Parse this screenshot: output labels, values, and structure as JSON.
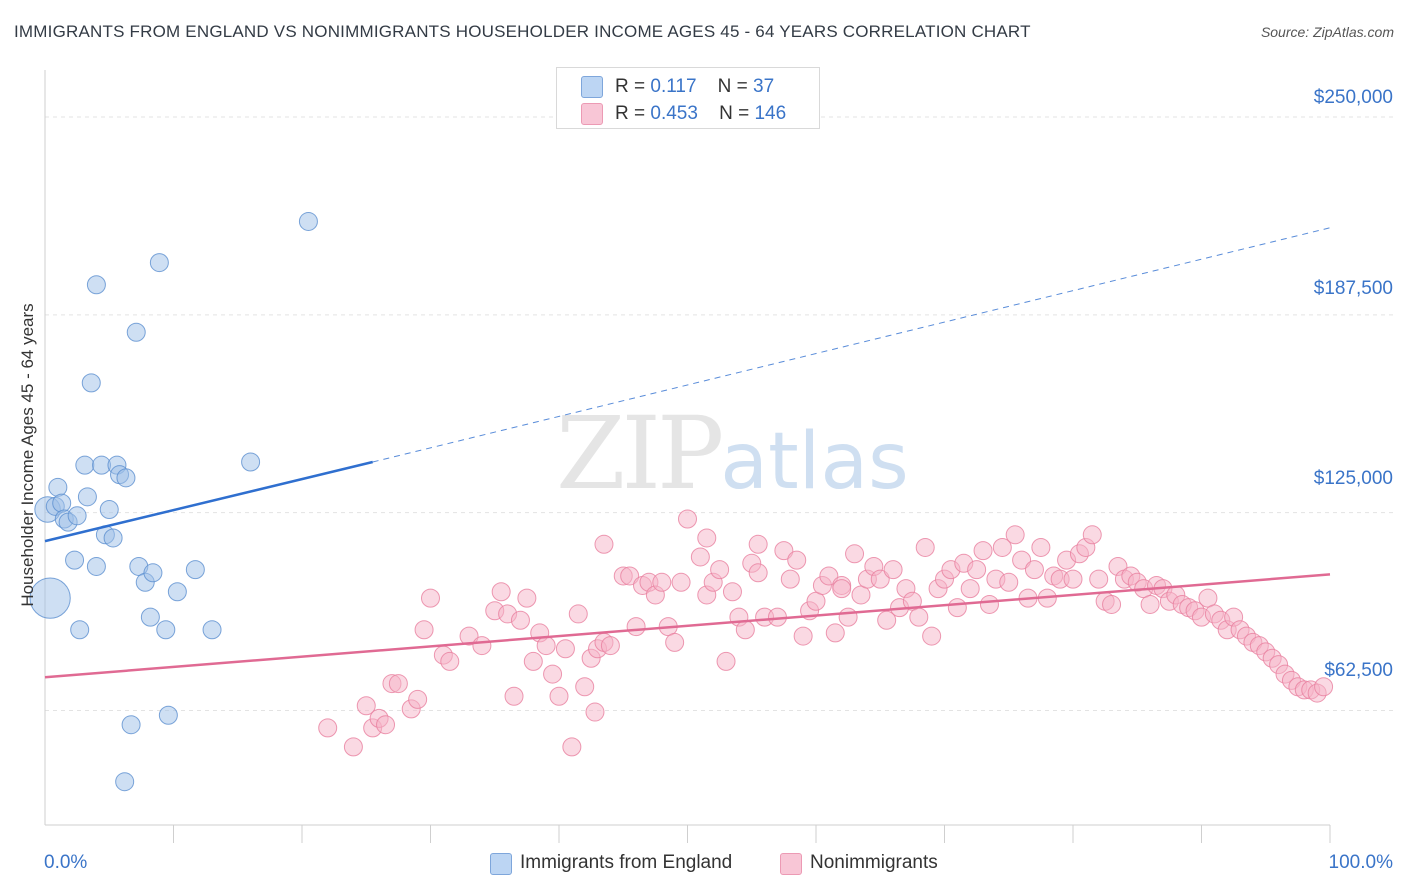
{
  "chart_data": {
    "type": "scatter",
    "title": "IMMIGRANTS FROM ENGLAND VS NONIMMIGRANTS HOUSEHOLDER INCOME AGES 45 - 64 YEARS CORRELATION CHART",
    "source": "Source: ZipAtlas.com",
    "xlabel": "",
    "ylabel": "Householder Income Ages 45 - 64 years",
    "xlim": [
      0,
      100
    ],
    "ylim": [
      20000,
      262000
    ],
    "x_tick_labels": [
      "0.0%",
      "100.0%"
    ],
    "y_ticks": [
      62500,
      125000,
      187500,
      250000
    ],
    "y_tick_labels": [
      "$62,500",
      "$125,000",
      "$187,500",
      "$250,000"
    ],
    "grid": true,
    "watermark": {
      "zip": "ZIP",
      "atlas": "atlas"
    },
    "series": [
      {
        "name": "Immigrants from England",
        "color": "#9dbfe8",
        "stroke": "#5b8fd0",
        "r_label": "R =",
        "r_value": "0.117",
        "n_label": "N =",
        "n_value": "37",
        "trend": {
          "x0": 0,
          "y0": 116000,
          "x1": 25.5,
          "y1": 141000,
          "dash_x1": 100,
          "dash_y1": 215000,
          "color": "#2f6fcf"
        },
        "points": [
          [
            0.2,
            126000,
            2
          ],
          [
            0.4,
            98000,
            5
          ],
          [
            0.8,
            127000,
            1
          ],
          [
            1.0,
            133000,
            1
          ],
          [
            1.3,
            128000,
            1
          ],
          [
            1.5,
            123000,
            1
          ],
          [
            1.8,
            122000,
            1
          ],
          [
            2.3,
            110000,
            1
          ],
          [
            2.5,
            124000,
            1
          ],
          [
            2.7,
            88000,
            1
          ],
          [
            3.1,
            140000,
            1
          ],
          [
            3.3,
            130000,
            1
          ],
          [
            3.6,
            166000,
            1
          ],
          [
            4.0,
            197000,
            1
          ],
          [
            4.0,
            108000,
            1
          ],
          [
            4.4,
            140000,
            1
          ],
          [
            4.7,
            118000,
            1
          ],
          [
            5.0,
            126000,
            1
          ],
          [
            5.3,
            117000,
            1
          ],
          [
            5.6,
            140000,
            1
          ],
          [
            5.8,
            137000,
            1
          ],
          [
            6.3,
            136000,
            1
          ],
          [
            6.2,
            40000,
            1
          ],
          [
            6.7,
            58000,
            1
          ],
          [
            7.1,
            182000,
            1
          ],
          [
            7.3,
            108000,
            1
          ],
          [
            7.8,
            103000,
            1
          ],
          [
            8.2,
            92000,
            1
          ],
          [
            8.4,
            106000,
            1
          ],
          [
            8.9,
            204000,
            1
          ],
          [
            9.4,
            88000,
            1
          ],
          [
            9.6,
            61000,
            1
          ],
          [
            10.3,
            100000,
            1
          ],
          [
            11.7,
            107000,
            1
          ],
          [
            13.0,
            88000,
            1
          ],
          [
            16.0,
            141000,
            1
          ],
          [
            20.5,
            217000,
            1
          ]
        ]
      },
      {
        "name": "Nonimmigrants",
        "color": "#f5b3c8",
        "stroke": "#e8809f",
        "r_label": "R =",
        "r_value": "0.453",
        "n_label": "N =",
        "n_value": "146",
        "trend": {
          "x0": 0,
          "y0": 73000,
          "x1": 100,
          "y1": 105500,
          "color": "#e06a93"
        },
        "points": [
          [
            22.0,
            57000
          ],
          [
            24.0,
            51000
          ],
          [
            25.0,
            64000
          ],
          [
            25.5,
            57000
          ],
          [
            26.0,
            60000
          ],
          [
            26.5,
            58000
          ],
          [
            27.0,
            71000
          ],
          [
            27.5,
            71000
          ],
          [
            28.5,
            63000
          ],
          [
            29.0,
            66000
          ],
          [
            29.5,
            88000
          ],
          [
            30.0,
            98000
          ],
          [
            31.0,
            80000
          ],
          [
            31.5,
            78000
          ],
          [
            33.0,
            86000
          ],
          [
            34.0,
            83000
          ],
          [
            35.0,
            94000
          ],
          [
            35.5,
            100000
          ],
          [
            36.0,
            93000
          ],
          [
            36.5,
            67000
          ],
          [
            37.0,
            91000
          ],
          [
            37.5,
            98000
          ],
          [
            38.0,
            78000
          ],
          [
            38.5,
            87000
          ],
          [
            39.0,
            83000
          ],
          [
            39.5,
            74000
          ],
          [
            40.0,
            67000
          ],
          [
            40.5,
            82000
          ],
          [
            41.0,
            51000
          ],
          [
            41.5,
            93000
          ],
          [
            42.0,
            70000
          ],
          [
            42.5,
            79000
          ],
          [
            42.8,
            62000
          ],
          [
            43.0,
            82000
          ],
          [
            43.5,
            84000
          ],
          [
            44.0,
            83000
          ],
          [
            45.0,
            105000
          ],
          [
            45.5,
            105000
          ],
          [
            46.0,
            89000
          ],
          [
            46.5,
            102000
          ],
          [
            47.0,
            103000
          ],
          [
            47.5,
            99000
          ],
          [
            48.0,
            103000
          ],
          [
            48.5,
            89000
          ],
          [
            49.0,
            84000
          ],
          [
            49.5,
            103000
          ],
          [
            50.0,
            123000
          ],
          [
            51.0,
            111000
          ],
          [
            51.5,
            99000
          ],
          [
            52.0,
            103000
          ],
          [
            52.5,
            107000
          ],
          [
            53.0,
            78000
          ],
          [
            53.5,
            100000
          ],
          [
            54.0,
            92000
          ],
          [
            54.5,
            88000
          ],
          [
            55.0,
            109000
          ],
          [
            55.5,
            106000
          ],
          [
            56.0,
            92000
          ],
          [
            57.0,
            92000
          ],
          [
            57.5,
            113000
          ],
          [
            58.0,
            104000
          ],
          [
            58.5,
            110000
          ],
          [
            59.0,
            86000
          ],
          [
            59.5,
            94000
          ],
          [
            60.0,
            97000
          ],
          [
            60.5,
            102000
          ],
          [
            61.0,
            105000
          ],
          [
            61.5,
            87000
          ],
          [
            62.0,
            102000
          ],
          [
            62.5,
            92000
          ],
          [
            63.0,
            112000
          ],
          [
            63.5,
            99000
          ],
          [
            64.0,
            104000
          ],
          [
            64.5,
            108000
          ],
          [
            65.0,
            104000
          ],
          [
            65.5,
            91000
          ],
          [
            66.0,
            107000
          ],
          [
            66.5,
            95000
          ],
          [
            67.0,
            101000
          ],
          [
            67.5,
            97000
          ],
          [
            68.0,
            92000
          ],
          [
            68.5,
            114000
          ],
          [
            69.0,
            86000
          ],
          [
            69.5,
            101000
          ],
          [
            70.0,
            104000
          ],
          [
            70.5,
            107000
          ],
          [
            71.0,
            95000
          ],
          [
            71.5,
            109000
          ],
          [
            72.0,
            101000
          ],
          [
            72.5,
            107000
          ],
          [
            73.0,
            113000
          ],
          [
            73.5,
            96000
          ],
          [
            74.0,
            104000
          ],
          [
            74.5,
            114000
          ],
          [
            75.0,
            103000
          ],
          [
            75.5,
            118000
          ],
          [
            76.0,
            110000
          ],
          [
            76.5,
            98000
          ],
          [
            77.0,
            107000
          ],
          [
            77.5,
            114000
          ],
          [
            78.0,
            98000
          ],
          [
            78.5,
            105000
          ],
          [
            79.0,
            104000
          ],
          [
            79.5,
            110000
          ],
          [
            80.0,
            104000
          ],
          [
            80.5,
            112000
          ],
          [
            81.0,
            114000
          ],
          [
            81.5,
            118000
          ],
          [
            82.0,
            104000
          ],
          [
            82.5,
            97000
          ],
          [
            83.0,
            96000
          ],
          [
            83.5,
            108000
          ],
          [
            84.0,
            104000
          ],
          [
            84.5,
            105000
          ],
          [
            85.0,
            103000
          ],
          [
            85.5,
            101000
          ],
          [
            86.0,
            96000
          ],
          [
            86.5,
            102000
          ],
          [
            87.0,
            101000
          ],
          [
            87.5,
            97000
          ],
          [
            88.0,
            99000
          ],
          [
            88.5,
            96000
          ],
          [
            89.0,
            95000
          ],
          [
            89.5,
            94000
          ],
          [
            90.0,
            92000
          ],
          [
            90.5,
            98000
          ],
          [
            91.0,
            93000
          ],
          [
            91.5,
            91000
          ],
          [
            92.0,
            88000
          ],
          [
            92.5,
            92000
          ],
          [
            93.0,
            88000
          ],
          [
            93.5,
            86000
          ],
          [
            94.0,
            84000
          ],
          [
            94.5,
            83000
          ],
          [
            95.0,
            81000
          ],
          [
            95.5,
            79000
          ],
          [
            96.0,
            77000
          ],
          [
            96.5,
            74000
          ],
          [
            97.0,
            72000
          ],
          [
            97.5,
            70000
          ],
          [
            98.0,
            69000
          ],
          [
            98.5,
            69000
          ],
          [
            99.0,
            68000
          ],
          [
            99.5,
            70000
          ],
          [
            62.0,
            101000
          ],
          [
            55.5,
            115000
          ],
          [
            51.5,
            117000
          ],
          [
            43.5,
            115000
          ]
        ]
      }
    ]
  }
}
